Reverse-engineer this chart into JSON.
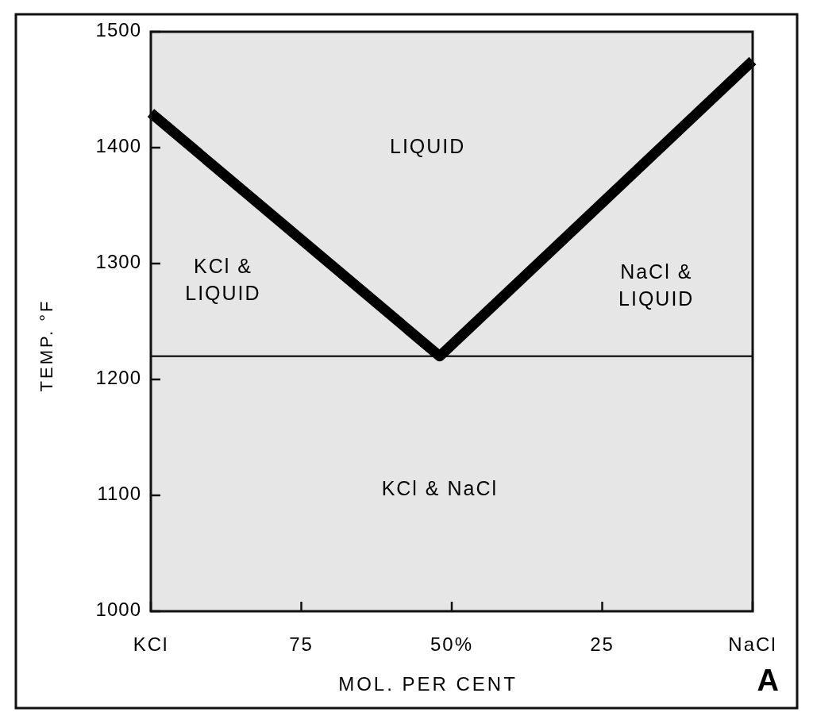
{
  "chart_data": {
    "type": "line",
    "xlabel": "MOL. PER CENT",
    "ylabel": "TEMP. °F",
    "xlim": [
      100,
      0
    ],
    "xticks": [
      {
        "value": 100,
        "label": "KCl"
      },
      75,
      {
        "value": 50,
        "label": "50%"
      },
      25,
      {
        "value": 0,
        "label": "NaCl"
      }
    ],
    "ylim": [
      1000,
      1500
    ],
    "yticks": [
      1000,
      1100,
      1200,
      1300,
      1400,
      1500
    ],
    "series": [
      {
        "color": "#000000",
        "x": [
          100,
          52,
          0
        ],
        "values": [
          1430,
          1220,
          1475
        ]
      }
    ],
    "ref_lines": [
      {
        "axis": "y",
        "value": 1220,
        "color": "#222222"
      }
    ],
    "annotations": [
      "LIQUID",
      "KCl &\nLIQUID",
      "NaCl &\nLIQUID",
      "KCl & NaCl",
      "A"
    ],
    "grid": false,
    "marker": "none",
    "line_style": "solid"
  }
}
